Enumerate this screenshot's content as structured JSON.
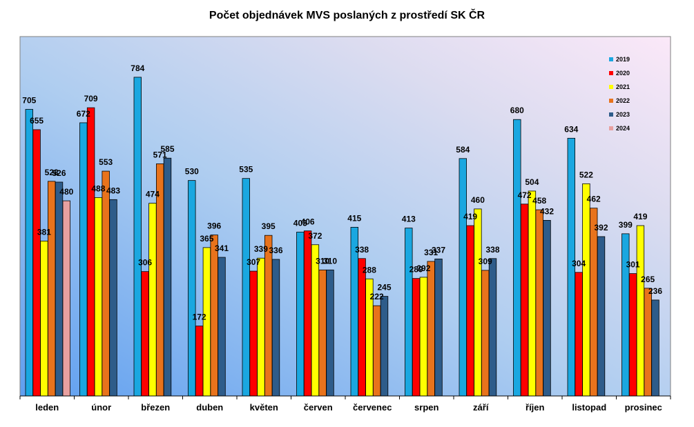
{
  "chart_data": {
    "type": "bar",
    "title": "Počet objednávek MVS poslaných z prostředí SK ČR",
    "xlabel": "",
    "ylabel": "",
    "ylim": [
      0,
      884
    ],
    "grid": false,
    "legend_position": "top-right",
    "categories": [
      "leden",
      "únor",
      "březen",
      "duben",
      "květen",
      "červen",
      "červenec",
      "srpen",
      "září",
      "říjen",
      "listopad",
      "prosinec"
    ],
    "series": [
      {
        "name": "2019",
        "color": "#1aa7e0",
        "values": [
          705,
          672,
          784,
          530,
          535,
          403,
          415,
          413,
          584,
          680,
          634,
          399
        ]
      },
      {
        "name": "2020",
        "color": "#ff0000",
        "values": [
          655,
          709,
          306,
          172,
          307,
          406,
          338,
          289,
          419,
          472,
          304,
          301
        ]
      },
      {
        "name": "2021",
        "color": "#ffff00",
        "values": [
          381,
          488,
          474,
          365,
          339,
          372,
          288,
          292,
          460,
          504,
          522,
          419
        ]
      },
      {
        "name": "2022",
        "color": "#e8731c",
        "values": [
          528,
          553,
          571,
          396,
          395,
          310,
          222,
          331,
          309,
          458,
          462,
          265
        ]
      },
      {
        "name": "2023",
        "color": "#2e5c8a",
        "values": [
          526,
          483,
          585,
          341,
          336,
          310,
          245,
          337,
          338,
          432,
          392,
          236
        ]
      },
      {
        "name": "2024",
        "color": "#e8a0a0",
        "values": [
          480,
          null,
          null,
          null,
          null,
          null,
          null,
          null,
          null,
          null,
          null,
          null
        ]
      }
    ]
  }
}
